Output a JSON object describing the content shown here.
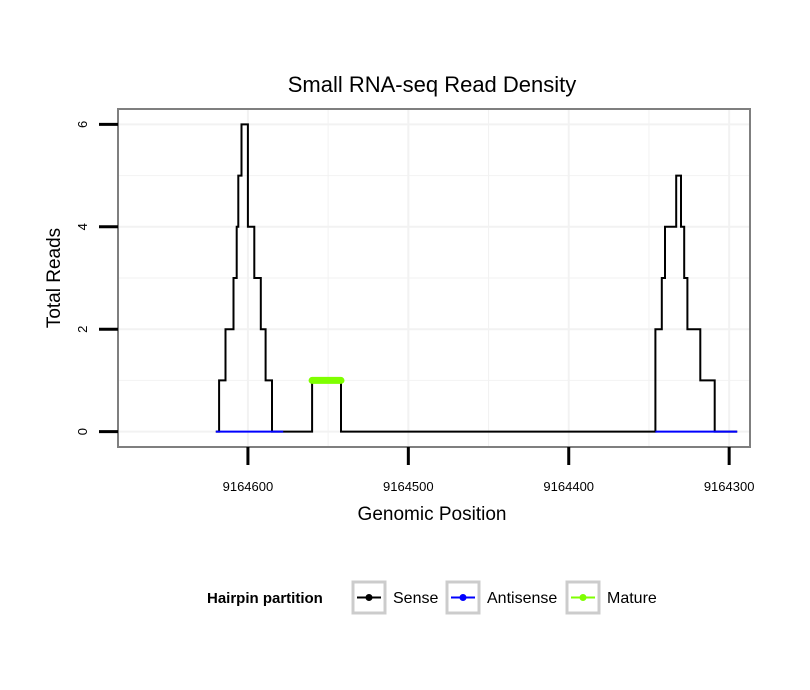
{
  "chart_data": {
    "type": "line",
    "title": "Small RNA-seq Read Density",
    "xlabel": "Genomic Position",
    "ylabel": "Total Reads",
    "x_reversed": true,
    "xlim": [
      9164681,
      9164287
    ],
    "ylim": [
      -0.3,
      6.3
    ],
    "x_ticks": [
      9164600,
      9164500,
      9164400,
      9164300
    ],
    "x_tick_labels": [
      "9164600",
      "9164500",
      "9164400",
      "9164300"
    ],
    "y_ticks": [
      0,
      2,
      4,
      6
    ],
    "y_tick_labels": [
      "0",
      "2",
      "4",
      "6"
    ],
    "grid": true,
    "legend": {
      "title": "Hairpin partition",
      "position": "bottom"
    },
    "series": [
      {
        "name": "Sense",
        "color": "#000000",
        "x": [
          9164620,
          9164618,
          9164618,
          9164614,
          9164614,
          9164609,
          9164609,
          9164607,
          9164607,
          9164606,
          9164606,
          9164604,
          9164604,
          9164602,
          9164602,
          9164600,
          9164600,
          9164596,
          9164596,
          9164592,
          9164592,
          9164589,
          9164589,
          9164585,
          9164585,
          9164578,
          9164578,
          9164560,
          9164560,
          9164542,
          9164542,
          9164346,
          9164346,
          9164342,
          9164342,
          9164340,
          9164340,
          9164337,
          9164337,
          9164333,
          9164333,
          9164330,
          9164330,
          9164328,
          9164328,
          9164326,
          9164326,
          9164323,
          9164323,
          9164318,
          9164318,
          9164309,
          9164309,
          9164303,
          9164303,
          9164295
        ],
        "y": [
          0,
          0,
          1,
          1,
          2,
          2,
          3,
          3,
          4,
          4,
          5,
          5,
          6,
          6,
          6,
          6,
          4,
          4,
          3,
          3,
          2,
          2,
          1,
          1,
          0,
          0,
          0,
          0,
          1,
          1,
          0,
          0,
          2,
          2,
          3,
          3,
          4,
          4,
          4,
          4,
          5,
          5,
          4,
          4,
          3,
          3,
          2,
          2,
          2,
          2,
          1,
          1,
          0,
          0,
          0,
          0
        ]
      },
      {
        "name": "Antisense",
        "color": "#0000ff",
        "x": [
          9164620,
          9164578,
          9164346,
          9164295
        ],
        "y": [
          0,
          0,
          0,
          0
        ],
        "segments": [
          [
            0,
            1
          ],
          [
            2,
            3
          ]
        ]
      },
      {
        "name": "Mature",
        "color": "#7fff00",
        "x": [
          9164560,
          9164542
        ],
        "y": [
          1,
          1
        ]
      }
    ]
  },
  "colors": {
    "panel_border": "#7f7f7f",
    "grid": "#f2f2f2",
    "legend_key_border": "#cccccc"
  }
}
